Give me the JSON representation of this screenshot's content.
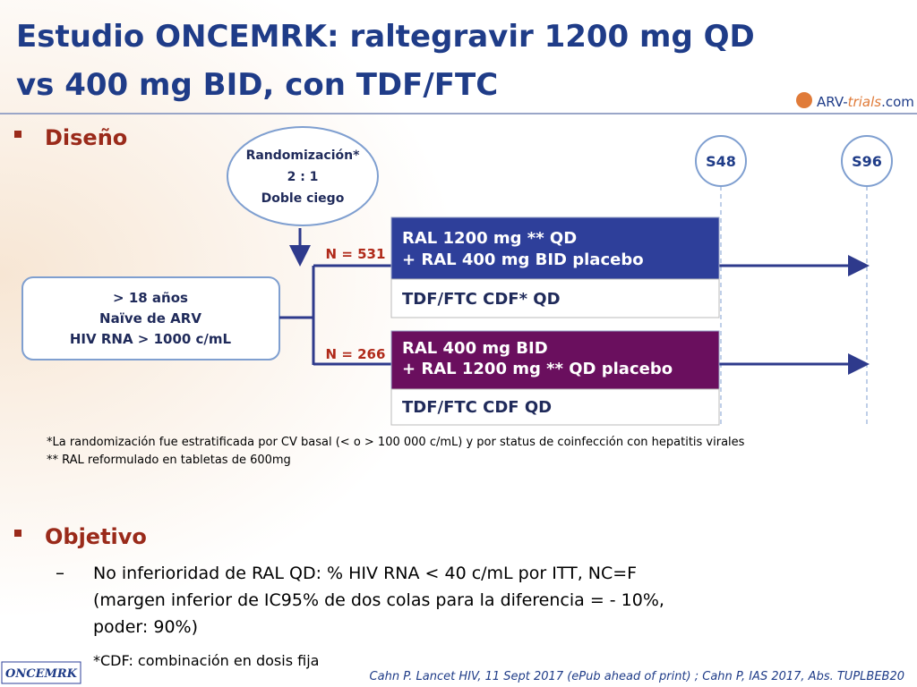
{
  "header": {
    "title_lines": [
      "Estudio ONCEMRK: raltegravir 1200 mg QD",
      "vs 400 mg BID, con TDF/FTC"
    ],
    "logo": {
      "prefix": "ARV-",
      "brand": "trials",
      "suffix": ".com"
    }
  },
  "design": {
    "heading": "Diseño",
    "randomization": [
      "Randomización*",
      "2 : 1",
      "Doble ciego"
    ],
    "timepoints": [
      "S48",
      "S96"
    ],
    "eligibility": [
      "> 18 años",
      "Naïve de ARV",
      "HIV RNA > 1000 c/mL"
    ],
    "arms": [
      {
        "n": "N = 531",
        "drug": [
          "RAL 1200 mg ** QD",
          "+ RAL 400 mg BID placebo"
        ],
        "backbone": "TDF/FTC CDF* QD"
      },
      {
        "n": "N = 266",
        "drug": [
          "RAL 400 mg BID",
          "+ RAL 1200 mg ** QD placebo"
        ],
        "backbone": "TDF/FTC CDF QD"
      }
    ],
    "footnotes": [
      "*La randomización fue estratificada por CV basal (< o > 100 000 c/mL) y por status de coinfección con hepatitis virales",
      "** RAL reformulado en tabletas de 600mg"
    ]
  },
  "objective": {
    "heading": "Objetivo",
    "lines": [
      "No inferioridad de RAL QD: % HIV RNA < 40 c/mL por ITT, NC=F",
      "(margen inferior de IC95% de dos colas para la diferencia =  - 10%,",
      "poder: 90%)"
    ],
    "note": "*CDF: combinación en dosis fija"
  },
  "footer": {
    "study": "ONCEMRK",
    "citation": "Cahn P. Lancet HIV, 11 Sept 2017 (ePub ahead of print) ; Cahn P, IAS 2017, Abs. TUPLBEB20"
  }
}
